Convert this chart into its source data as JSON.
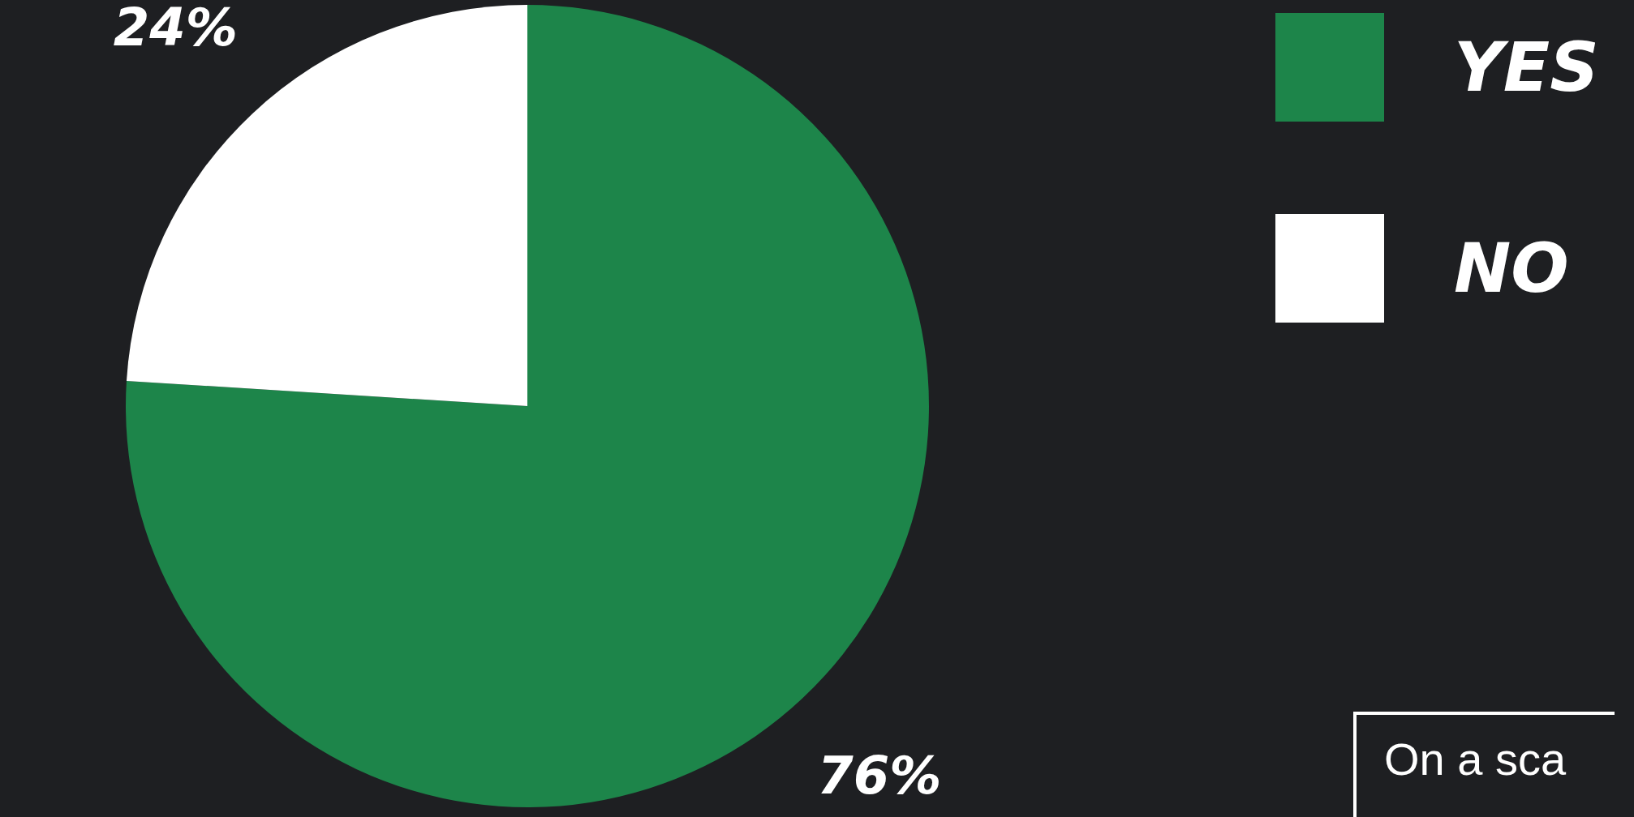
{
  "chart_data": {
    "type": "pie",
    "categories": [
      "YES",
      "NO"
    ],
    "values": [
      76,
      24
    ],
    "colors": [
      "#1d854a",
      "#ffffff"
    ],
    "value_labels": [
      "76%",
      "24%"
    ],
    "legend": "top right",
    "annotations": [
      "On a sca"
    ]
  }
}
